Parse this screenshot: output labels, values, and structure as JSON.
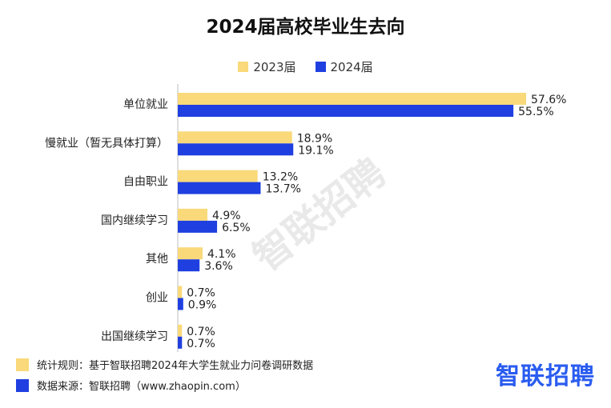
{
  "title": "2024届高校毕业生去向",
  "watermark": "智联招聘",
  "legend": [
    {
      "label": "2023届",
      "color": "#f9d97a"
    },
    {
      "label": "2024届",
      "color": "#1f3fe0"
    }
  ],
  "footer": {
    "rule": "统计规则：基于智联招聘2024年大学生就业力问卷调研数据",
    "source": "数据来源：智联招聘（www.zhaopin.com）"
  },
  "brand": "智联招聘",
  "chart_data": {
    "type": "bar",
    "orientation": "horizontal",
    "title": "2024届高校毕业生去向",
    "categories": [
      "单位就业",
      "慢就业（暂无具体打算）",
      "自由职业",
      "国内继续学习",
      "其他",
      "创业",
      "出国继续学习"
    ],
    "series": [
      {
        "name": "2023届",
        "values": [
          57.6,
          18.9,
          13.2,
          4.9,
          4.1,
          0.7,
          0.7
        ],
        "color": "#f9d97a"
      },
      {
        "name": "2024届",
        "values": [
          55.5,
          19.1,
          13.7,
          6.5,
          3.6,
          0.9,
          0.7
        ],
        "color": "#1f3fe0"
      }
    ],
    "data_labels": [
      [
        "57.6%",
        "18.9%",
        "13.2%",
        "4.9%",
        "4.1%",
        "0.7%",
        "0.7%"
      ],
      [
        "55.5%",
        "19.1%",
        "13.7%",
        "6.5%",
        "3.6%",
        "0.9%",
        "0.7%"
      ]
    ],
    "unit": "%",
    "xlim": [
      0,
      60
    ],
    "legend_position": "top-center",
    "grid": false
  }
}
